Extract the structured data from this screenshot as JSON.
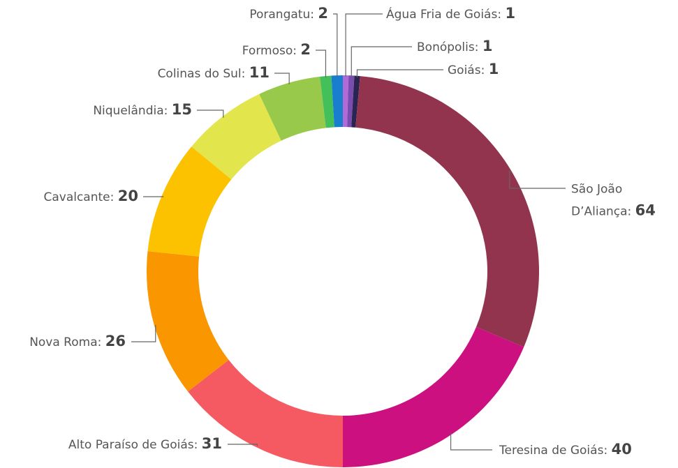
{
  "chart_data": {
    "type": "donut",
    "categories": [
      "Água Fria de Goiás",
      "Bonópolis",
      "Goiás",
      "São João D’Aliança",
      "Teresina de Goiás",
      "Alto Paraíso de Goiás",
      "Nova Roma",
      "Cavalcante",
      "Niquelândia",
      "Colinas do Sul",
      "Formoso",
      "Porangatu"
    ],
    "values": [
      1,
      1,
      1,
      64,
      40,
      31,
      26,
      20,
      15,
      11,
      2,
      2
    ],
    "colors": [
      "#b26bd6",
      "#7a4cb0",
      "#2b2452",
      "#92344e",
      "#cc1080",
      "#f55a62",
      "#fa9600",
      "#fcc200",
      "#e2e64c",
      "#98c94a",
      "#44c05a",
      "#1a7ecf"
    ]
  }
}
